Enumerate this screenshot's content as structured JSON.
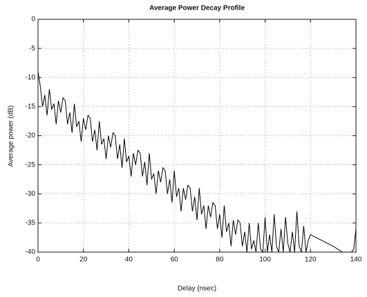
{
  "chart_data": {
    "type": "line",
    "title": "Average Power Decay Profile",
    "x_label": "Delay (nsec)",
    "y_label": "Average power (dB)",
    "x": [
      0,
      1,
      2,
      3,
      4,
      5,
      6,
      7,
      8,
      9,
      10,
      11,
      12,
      13,
      14,
      15,
      16,
      17,
      18,
      19,
      20,
      21,
      22,
      23,
      24,
      25,
      26,
      27,
      28,
      29,
      30,
      31,
      32,
      33,
      34,
      35,
      36,
      37,
      38,
      39,
      40,
      41,
      42,
      43,
      44,
      45,
      46,
      47,
      48,
      49,
      50,
      51,
      52,
      53,
      54,
      55,
      56,
      57,
      58,
      59,
      60,
      61,
      62,
      63,
      64,
      65,
      66,
      67,
      68,
      69,
      70,
      71,
      72,
      73,
      74,
      75,
      76,
      77,
      78,
      79,
      80,
      81,
      82,
      83,
      84,
      85,
      86,
      87,
      88,
      89,
      90,
      91,
      92,
      93,
      94,
      95,
      96,
      97,
      98,
      99,
      100,
      101,
      102,
      103,
      104,
      105,
      106,
      107,
      108,
      109,
      110,
      111,
      112,
      113,
      114,
      115,
      116,
      117,
      118,
      119,
      120,
      125,
      130,
      134,
      138,
      139,
      140
    ],
    "values": [
      -9,
      -11.5,
      -15,
      -13,
      -16.5,
      -12,
      -15.5,
      -14.5,
      -18,
      -14,
      -16,
      -13.5,
      -14,
      -18,
      -16,
      -19.5,
      -14.5,
      -18.5,
      -17.5,
      -21,
      -17,
      -19,
      -16.5,
      -17,
      -21,
      -19,
      -22.5,
      -17.5,
      -21.5,
      -20.5,
      -24,
      -20,
      -22,
      -19.5,
      -20,
      -24,
      -21.5,
      -25.5,
      -20.5,
      -24.5,
      -23.5,
      -27,
      -23,
      -25,
      -22.5,
      -23,
      -27,
      -24.5,
      -28.5,
      -23,
      -27.5,
      -26.5,
      -30,
      -26,
      -28,
      -25.5,
      -26,
      -30,
      -27.5,
      -31.5,
      -26,
      -30.5,
      -29,
      -33,
      -29,
      -31,
      -28.5,
      -29,
      -33,
      -30.5,
      -34.5,
      -29,
      -33.5,
      -32,
      -36,
      -32,
      -34,
      -31.5,
      -32,
      -36,
      -33.5,
      -37.5,
      -32,
      -36.5,
      -35,
      -39,
      -34.5,
      -37,
      -34.5,
      -35,
      -39,
      -36.5,
      -40,
      -35,
      -39.5,
      -38,
      -40,
      -35,
      -39.5,
      -40,
      -34,
      -40,
      -37,
      -40,
      -33.5,
      -39,
      -40,
      -36,
      -40,
      -34,
      -38.5,
      -40,
      -36.5,
      -40,
      -33,
      -39,
      -40,
      -35.5,
      -40,
      -38,
      -37,
      -38,
      -39,
      -40,
      -40,
      -39.5,
      -36
    ],
    "color": "#000000",
    "xlim": [
      0,
      140
    ],
    "xticks": [
      0,
      20,
      40,
      60,
      80,
      100,
      120,
      140
    ],
    "ylim": [
      -40,
      0
    ],
    "yticks": [
      -40,
      -35,
      -30,
      -25,
      -20,
      -15,
      -10,
      -5,
      0
    ],
    "grid": true
  }
}
